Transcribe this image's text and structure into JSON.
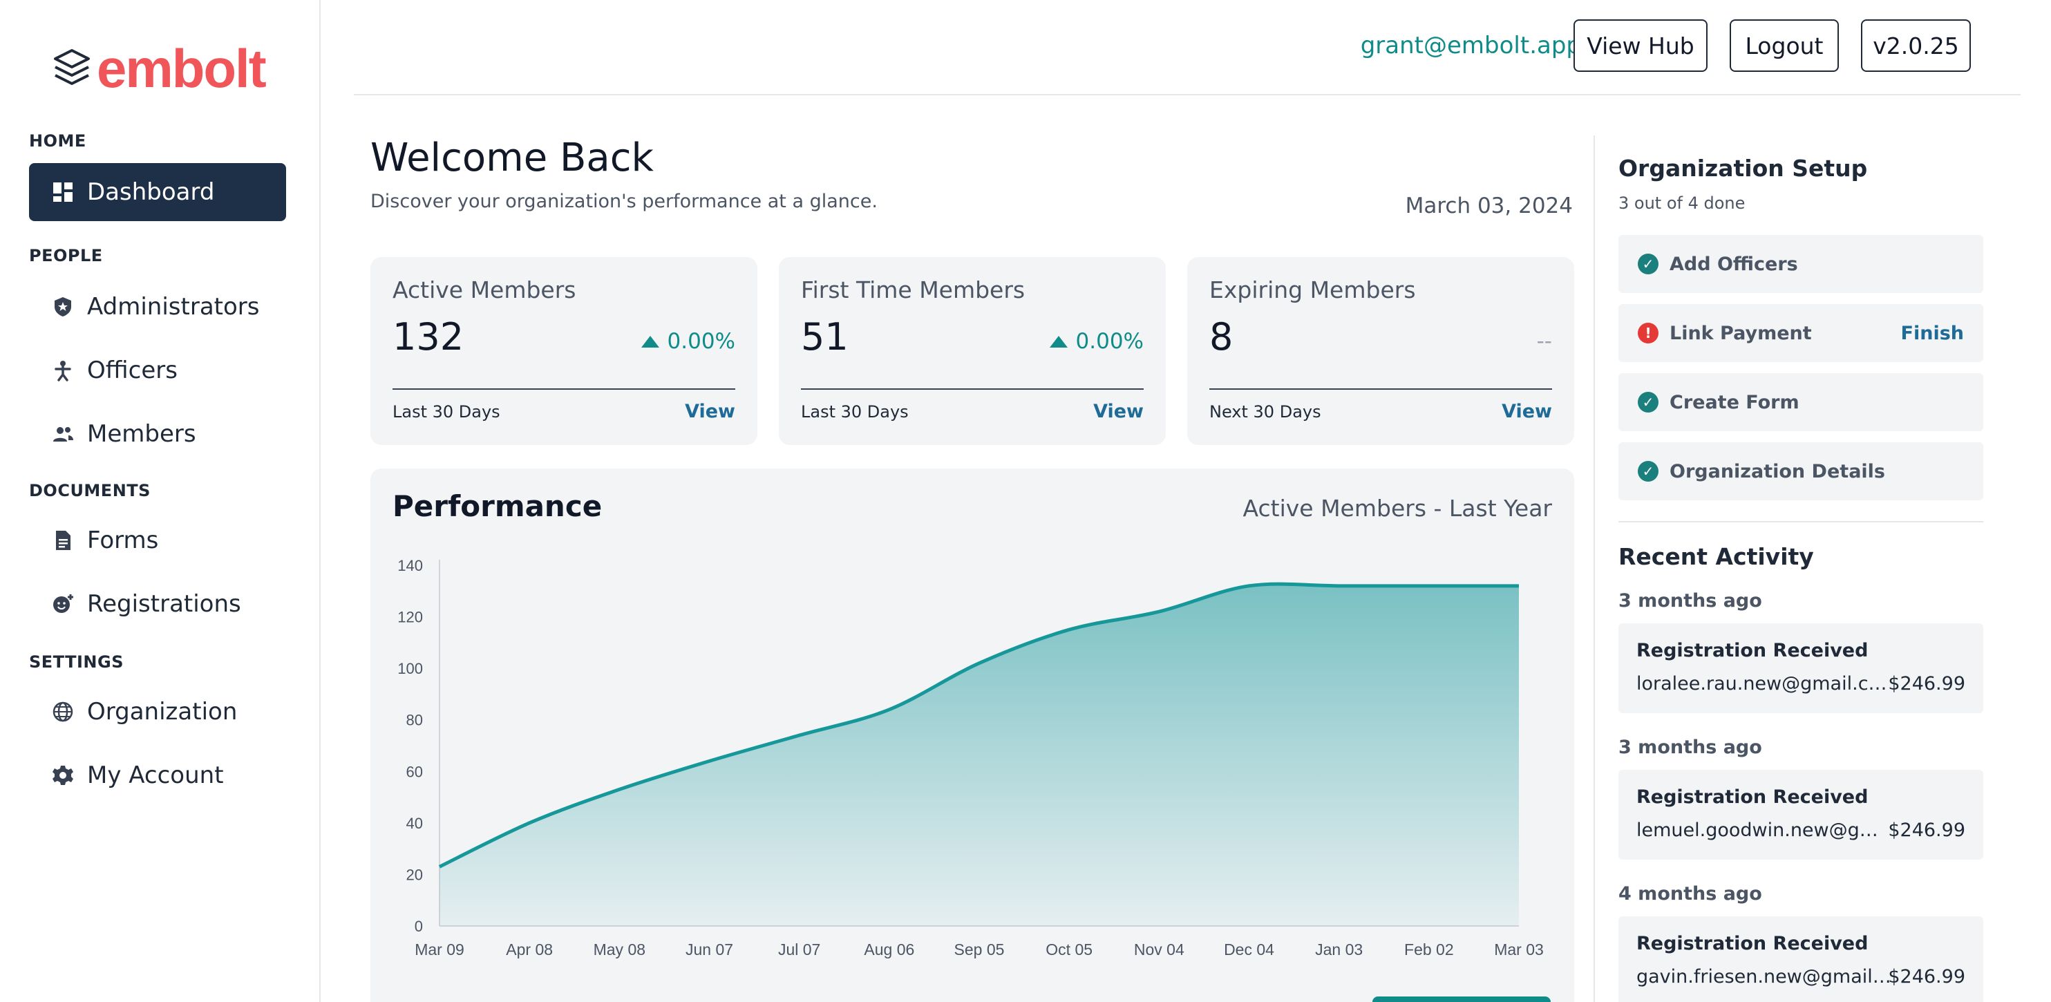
{
  "brand": {
    "name": "embolt",
    "color": "#f0555a"
  },
  "sidebar": {
    "sections": [
      {
        "title": "HOME"
      },
      {
        "title": "PEOPLE"
      },
      {
        "title": "DOCUMENTS"
      },
      {
        "title": "SETTINGS"
      }
    ],
    "items": [
      {
        "label": "Dashboard",
        "icon": "dashboard-icon",
        "active": true
      },
      {
        "label": "Administrators",
        "icon": "shield-icon"
      },
      {
        "label": "Officers",
        "icon": "officer-icon"
      },
      {
        "label": "Members",
        "icon": "people-icon"
      },
      {
        "label": "Forms",
        "icon": "document-icon"
      },
      {
        "label": "Registrations",
        "icon": "face-plus-icon"
      },
      {
        "label": "Organization",
        "icon": "globe-icon"
      },
      {
        "label": "My Account",
        "icon": "gear-icon"
      }
    ]
  },
  "header": {
    "email": "grant@embolt.app",
    "view_hub": "View Hub",
    "logout": "Logout",
    "version": "v2.0.25"
  },
  "main": {
    "title": "Welcome Back",
    "subtitle": "Discover your organization's performance at a glance.",
    "date": "March 03, 2024",
    "cards": [
      {
        "title": "Active Members",
        "value": "132",
        "change": "0.00%",
        "footer": "Last 30 Days",
        "link": "View"
      },
      {
        "title": "First Time Members",
        "value": "51",
        "change": "0.00%",
        "footer": "Last 30 Days",
        "link": "View"
      },
      {
        "title": "Expiring Members",
        "value": "8",
        "change": "--",
        "footer": "Next 30 Days",
        "link": "View"
      }
    ],
    "performance": {
      "title": "Performance",
      "subtitle": "Active Members - Last Year"
    }
  },
  "chart_data": {
    "type": "area",
    "title": "",
    "xlabel": "",
    "ylabel": "",
    "ylim": [
      0,
      140
    ],
    "yticks": [
      0,
      20,
      40,
      60,
      80,
      100,
      120,
      140
    ],
    "x": [
      "Mar 09",
      "Apr 08",
      "May 08",
      "Jun 07",
      "Jul 07",
      "Aug 06",
      "Sep 05",
      "Oct 05",
      "Nov 04",
      "Dec 04",
      "Jan 03",
      "Feb 02",
      "Mar 03"
    ],
    "series": [
      {
        "values": [
          23,
          40,
          53,
          64,
          74,
          84,
          102,
          115,
          122,
          132,
          132,
          132,
          132
        ]
      }
    ],
    "grid": false,
    "color": "#16979a"
  },
  "right": {
    "setup_title": "Organization Setup",
    "setup_progress": "3 out of 4 done",
    "tasks": [
      {
        "label": "Add Officers",
        "status": "done"
      },
      {
        "label": "Link Payment",
        "status": "error",
        "action": "Finish"
      },
      {
        "label": "Create Form",
        "status": "done"
      },
      {
        "label": "Organization Details",
        "status": "done"
      }
    ],
    "activity_title": "Recent Activity",
    "activity": [
      {
        "when": "3 months ago",
        "title": "Registration Received",
        "email": "loralee.rau.new@gmail.com",
        "amount": "$246.99"
      },
      {
        "when": "3 months ago",
        "title": "Registration Received",
        "email": "lemuel.goodwin.new@gmail.com",
        "amount": "$246.99"
      },
      {
        "when": "4 months ago",
        "title": "Registration Received",
        "email": "gavin.friesen.new@gmail.com",
        "amount": "$246.99"
      }
    ]
  }
}
